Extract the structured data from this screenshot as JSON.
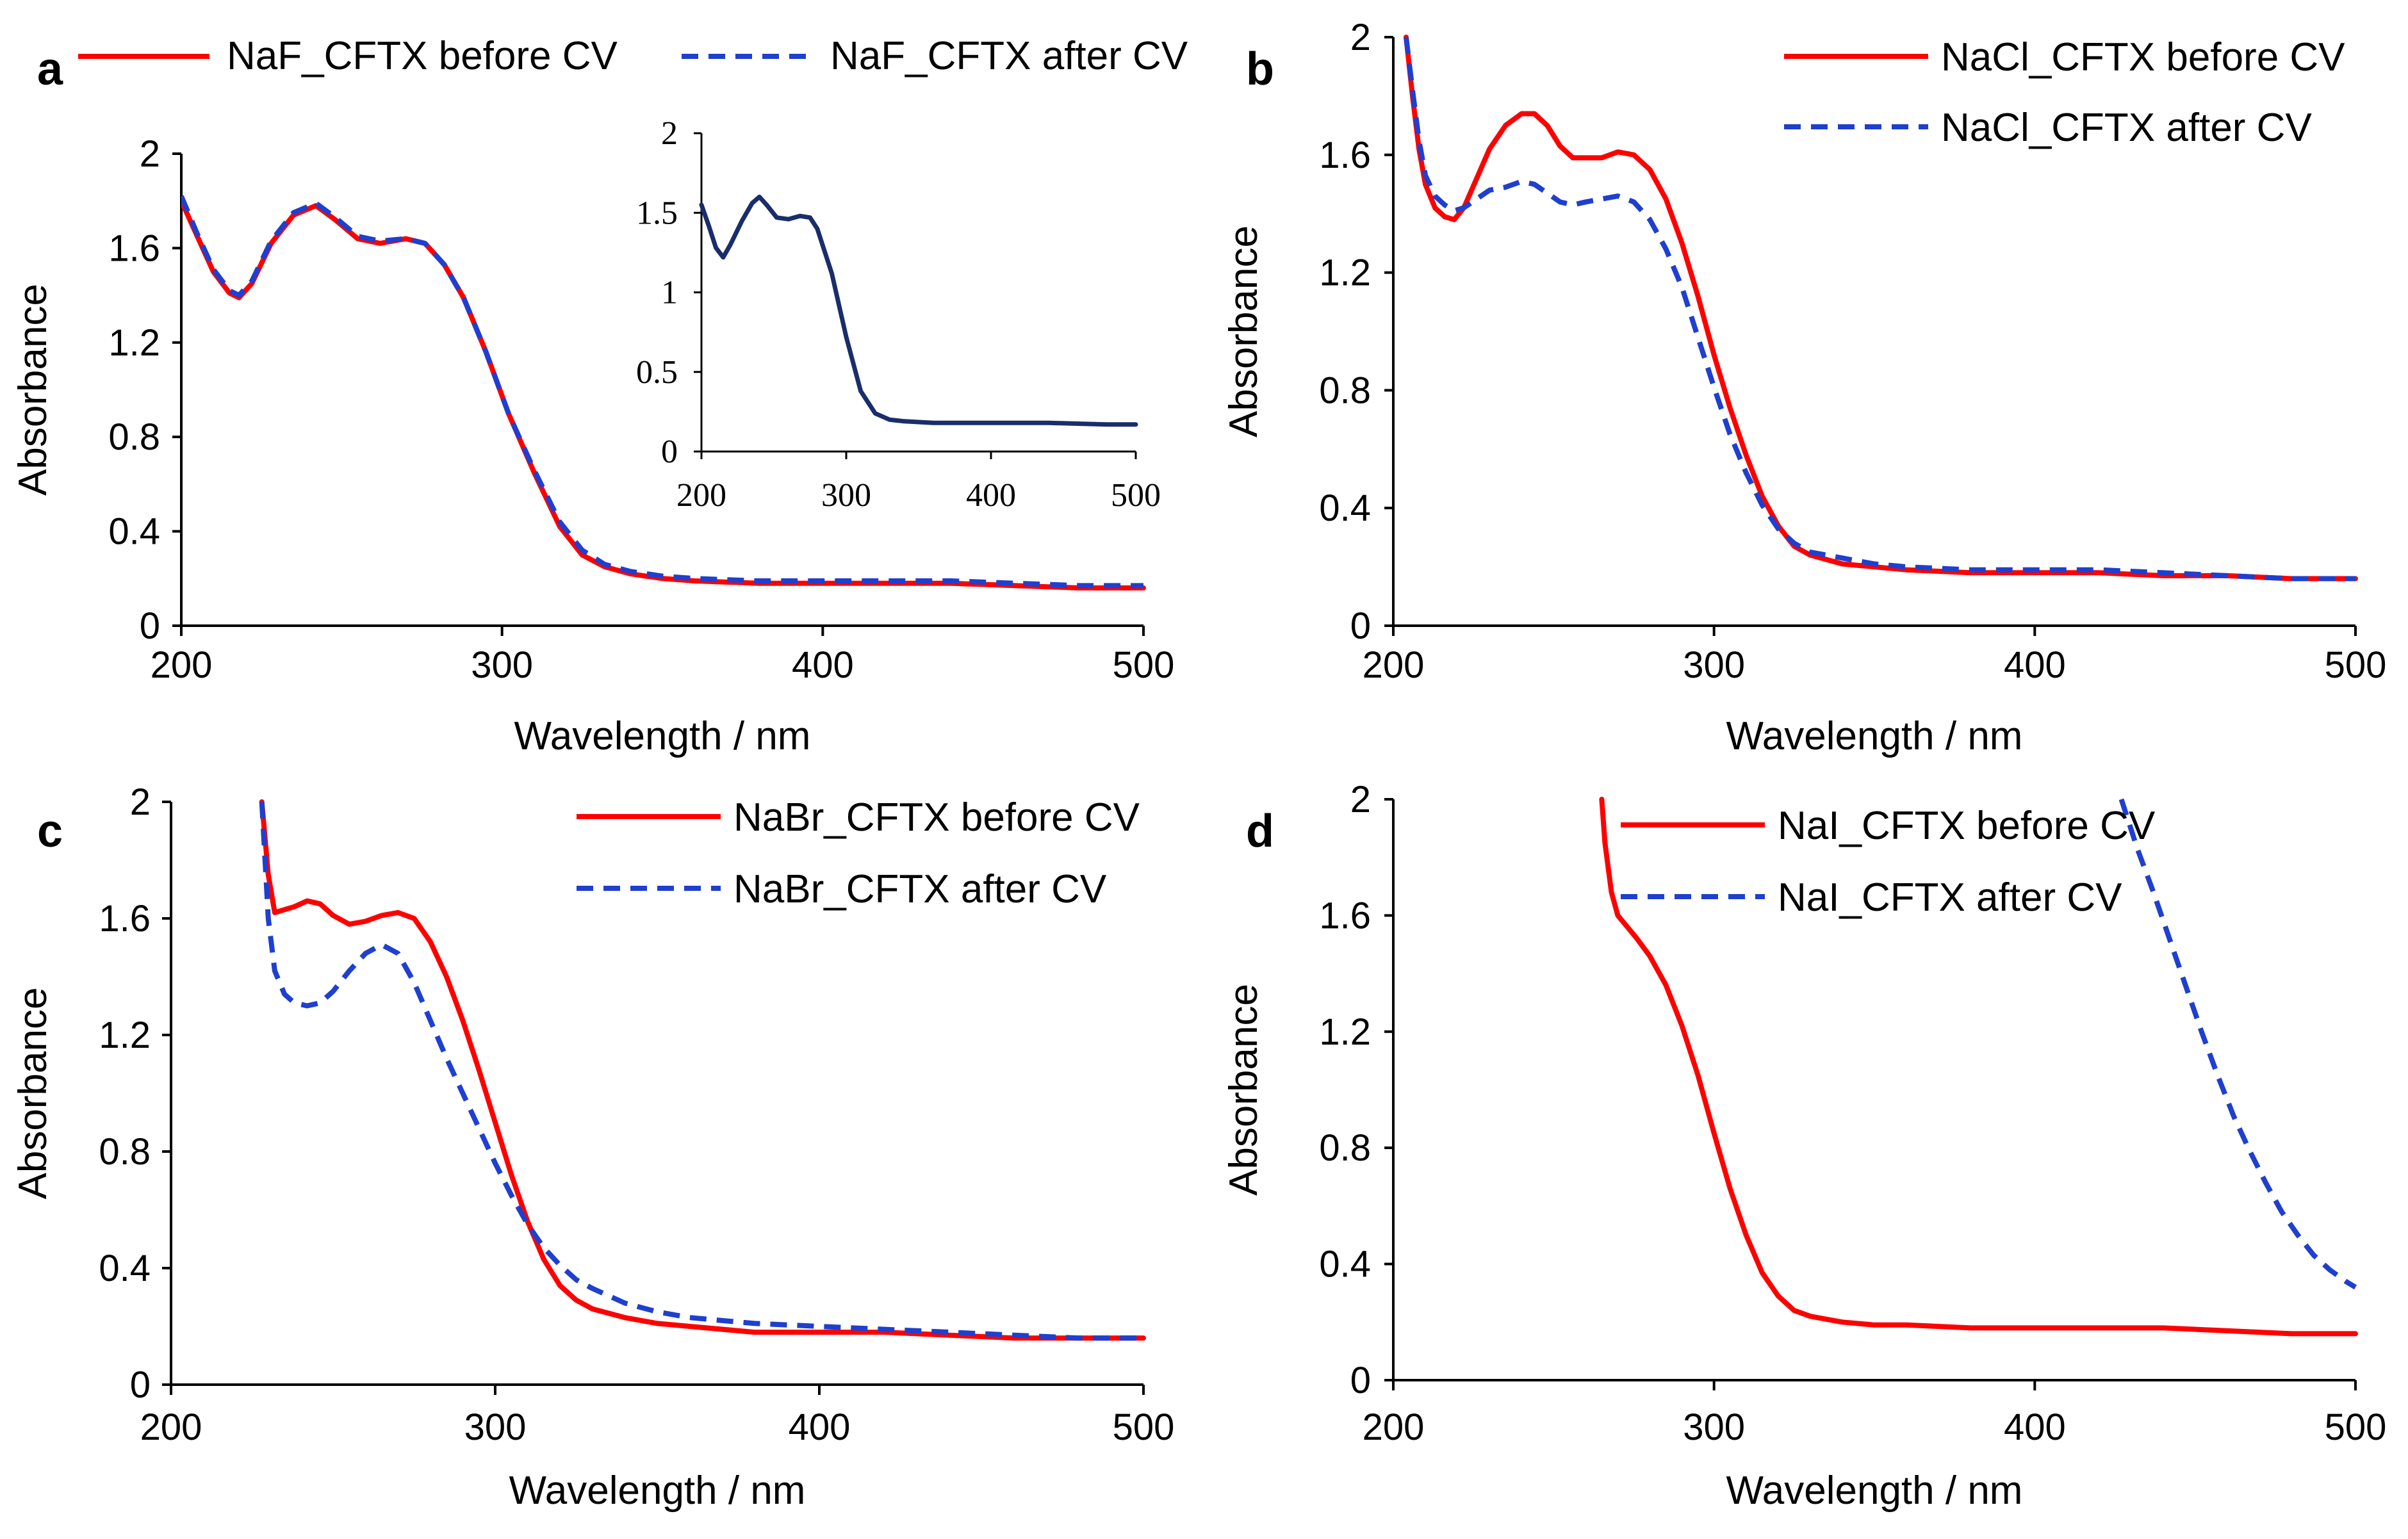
{
  "chart_data": [
    {
      "panel": "a",
      "type": "line",
      "xlabel": "Wavelength / nm",
      "ylabel": "Absorbance",
      "xlim": [
        200,
        500
      ],
      "ylim": [
        0,
        2
      ],
      "xticks": [
        "200",
        "300",
        "400",
        "500"
      ],
      "yticks": [
        "0",
        "0.4",
        "0.8",
        "1.2",
        "1.6",
        "2"
      ],
      "legend_position": "top",
      "series": [
        {
          "name": "NaF_CFTX before CV",
          "color": "#ff0000",
          "style": "solid",
          "x": [
            200,
            205,
            210,
            215,
            218,
            222,
            228,
            235,
            242,
            248,
            255,
            262,
            270,
            276,
            282,
            288,
            295,
            302,
            310,
            318,
            325,
            332,
            340,
            350,
            360,
            380,
            400,
            420,
            440,
            460,
            480,
            490,
            500
          ],
          "y": [
            1.8,
            1.65,
            1.5,
            1.41,
            1.39,
            1.45,
            1.62,
            1.74,
            1.78,
            1.72,
            1.64,
            1.62,
            1.64,
            1.62,
            1.53,
            1.39,
            1.16,
            0.9,
            0.65,
            0.42,
            0.3,
            0.25,
            0.22,
            0.2,
            0.19,
            0.18,
            0.18,
            0.18,
            0.18,
            0.17,
            0.16,
            0.16,
            0.16
          ]
        },
        {
          "name": "NaF_CFTX after CV",
          "color": "#1f3fcf",
          "style": "dashed",
          "x": [
            200,
            205,
            210,
            215,
            218,
            222,
            228,
            235,
            242,
            248,
            255,
            262,
            270,
            276,
            282,
            288,
            295,
            302,
            310,
            318,
            325,
            332,
            340,
            350,
            360,
            380,
            400,
            420,
            440,
            460,
            480,
            490,
            500
          ],
          "y": [
            1.82,
            1.66,
            1.51,
            1.42,
            1.4,
            1.46,
            1.63,
            1.75,
            1.79,
            1.73,
            1.65,
            1.63,
            1.64,
            1.62,
            1.53,
            1.39,
            1.16,
            0.9,
            0.66,
            0.44,
            0.32,
            0.26,
            0.23,
            0.21,
            0.2,
            0.19,
            0.19,
            0.19,
            0.19,
            0.18,
            0.17,
            0.17,
            0.17
          ]
        }
      ],
      "inset": {
        "type": "line",
        "xlim": [
          200,
          500
        ],
        "ylim": [
          0,
          2
        ],
        "xticks": [
          "200",
          "300",
          "400",
          "500"
        ],
        "yticks": [
          "0",
          "0.5",
          "1",
          "1.5",
          "2"
        ],
        "series": [
          {
            "color": "#1a2d6b",
            "x": [
              200,
              205,
              210,
              215,
              220,
              228,
              235,
              240,
              245,
              252,
              260,
              268,
              275,
              280,
              290,
              300,
              310,
              320,
              330,
              340,
              360,
              380,
              400,
              440,
              480,
              500
            ],
            "y": [
              1.55,
              1.42,
              1.28,
              1.22,
              1.3,
              1.45,
              1.56,
              1.6,
              1.55,
              1.47,
              1.46,
              1.48,
              1.47,
              1.4,
              1.12,
              0.72,
              0.38,
              0.24,
              0.2,
              0.19,
              0.18,
              0.18,
              0.18,
              0.18,
              0.17,
              0.17
            ]
          }
        ]
      }
    },
    {
      "panel": "b",
      "type": "line",
      "xlabel": "Wavelength / nm",
      "ylabel": "Absorbance",
      "xlim": [
        200,
        500
      ],
      "ylim": [
        0,
        2
      ],
      "xticks": [
        "200",
        "300",
        "400",
        "500"
      ],
      "yticks": [
        "0",
        "0.4",
        "0.8",
        "1.2",
        "1.6",
        "2"
      ],
      "legend_position": "top-right",
      "series": [
        {
          "name": "NaCl_CFTX before CV",
          "color": "#ff0000",
          "style": "solid",
          "x": [
            204,
            206,
            208,
            210,
            213,
            216,
            219,
            222,
            226,
            230,
            235,
            240,
            244,
            248,
            252,
            256,
            260,
            265,
            270,
            275,
            280,
            285,
            290,
            295,
            300,
            305,
            310,
            315,
            320,
            325,
            330,
            340,
            350,
            360,
            380,
            400,
            420,
            440,
            460,
            480,
            500
          ],
          "y": [
            2.0,
            1.8,
            1.62,
            1.5,
            1.42,
            1.39,
            1.38,
            1.42,
            1.52,
            1.62,
            1.7,
            1.74,
            1.74,
            1.7,
            1.63,
            1.59,
            1.59,
            1.59,
            1.61,
            1.6,
            1.55,
            1.45,
            1.3,
            1.12,
            0.92,
            0.74,
            0.58,
            0.44,
            0.34,
            0.27,
            0.24,
            0.21,
            0.2,
            0.19,
            0.18,
            0.18,
            0.18,
            0.17,
            0.17,
            0.16,
            0.16
          ]
        },
        {
          "name": "NaCl_CFTX after CV",
          "color": "#1f3fcf",
          "style": "dashed",
          "x": [
            204,
            206,
            208,
            210,
            213,
            216,
            219,
            222,
            226,
            230,
            235,
            240,
            244,
            248,
            252,
            256,
            260,
            265,
            270,
            275,
            280,
            285,
            290,
            295,
            300,
            305,
            310,
            315,
            320,
            325,
            330,
            340,
            350,
            360,
            380,
            400,
            420,
            440,
            460,
            480,
            500
          ],
          "y": [
            2.0,
            1.82,
            1.65,
            1.53,
            1.46,
            1.43,
            1.41,
            1.42,
            1.45,
            1.48,
            1.49,
            1.51,
            1.5,
            1.47,
            1.44,
            1.43,
            1.44,
            1.45,
            1.46,
            1.44,
            1.38,
            1.28,
            1.15,
            0.98,
            0.81,
            0.65,
            0.52,
            0.41,
            0.33,
            0.28,
            0.25,
            0.23,
            0.21,
            0.2,
            0.19,
            0.19,
            0.19,
            0.18,
            0.17,
            0.16,
            0.16
          ]
        }
      ]
    },
    {
      "panel": "c",
      "type": "line",
      "xlabel": "Wavelength / nm",
      "ylabel": "Absorbance",
      "xlim": [
        200,
        500
      ],
      "ylim": [
        0,
        2
      ],
      "xticks": [
        "200",
        "300",
        "400",
        "500"
      ],
      "yticks": [
        "0",
        "0.4",
        "0.8",
        "1.2",
        "1.6",
        "2"
      ],
      "legend_position": "top-right",
      "series": [
        {
          "name": "NaBr_CFTX before CV",
          "color": "#ff0000",
          "style": "solid",
          "x": [
            228,
            230,
            232,
            235,
            238,
            242,
            246,
            250,
            255,
            260,
            265,
            270,
            275,
            280,
            285,
            290,
            295,
            300,
            305,
            310,
            315,
            320,
            325,
            330,
            340,
            350,
            360,
            380,
            400,
            420,
            440,
            460,
            480,
            500
          ],
          "y": [
            2.0,
            1.75,
            1.62,
            1.63,
            1.64,
            1.66,
            1.65,
            1.61,
            1.58,
            1.59,
            1.61,
            1.62,
            1.6,
            1.52,
            1.4,
            1.25,
            1.08,
            0.9,
            0.72,
            0.56,
            0.43,
            0.34,
            0.29,
            0.26,
            0.23,
            0.21,
            0.2,
            0.18,
            0.18,
            0.18,
            0.17,
            0.16,
            0.16,
            0.16
          ]
        },
        {
          "name": "NaBr_CFTX after CV",
          "color": "#1f3fcf",
          "style": "dashed",
          "x": [
            228,
            230,
            232,
            235,
            238,
            242,
            246,
            250,
            255,
            260,
            265,
            270,
            275,
            280,
            285,
            290,
            295,
            300,
            305,
            310,
            315,
            320,
            325,
            330,
            340,
            350,
            360,
            380,
            400,
            420,
            440,
            460,
            480,
            500
          ],
          "y": [
            2.0,
            1.6,
            1.42,
            1.34,
            1.31,
            1.3,
            1.31,
            1.35,
            1.42,
            1.48,
            1.51,
            1.48,
            1.38,
            1.25,
            1.12,
            1.0,
            0.88,
            0.76,
            0.65,
            0.55,
            0.47,
            0.41,
            0.36,
            0.33,
            0.28,
            0.25,
            0.23,
            0.21,
            0.2,
            0.19,
            0.18,
            0.17,
            0.16,
            0.16
          ]
        }
      ]
    },
    {
      "panel": "d",
      "type": "line",
      "xlabel": "Wavelength / nm",
      "ylabel": "Absorbance",
      "xlim": [
        200,
        500
      ],
      "ylim": [
        0,
        2
      ],
      "xticks": [
        "200",
        "300",
        "400",
        "500"
      ],
      "yticks": [
        "0",
        "0.4",
        "0.8",
        "1.2",
        "1.6",
        "2"
      ],
      "legend_position": "top",
      "series": [
        {
          "name": "NaI_CFTX before CV",
          "color": "#ff0000",
          "style": "solid",
          "x": [
            265,
            266,
            268,
            270,
            273,
            276,
            280,
            285,
            290,
            295,
            300,
            305,
            310,
            315,
            320,
            325,
            330,
            335,
            340,
            350,
            360,
            380,
            400,
            420,
            440,
            460,
            480,
            500
          ],
          "y": [
            2.0,
            1.85,
            1.68,
            1.6,
            1.56,
            1.52,
            1.46,
            1.36,
            1.22,
            1.05,
            0.85,
            0.66,
            0.5,
            0.37,
            0.29,
            0.24,
            0.22,
            0.21,
            0.2,
            0.19,
            0.19,
            0.18,
            0.18,
            0.18,
            0.18,
            0.17,
            0.16,
            0.16
          ]
        },
        {
          "name": "NaI_CFTX after CV",
          "color": "#1f3fcf",
          "style": "dashed",
          "x": [
            427,
            432,
            437,
            442,
            447,
            452,
            457,
            462,
            467,
            472,
            477,
            482,
            487,
            492,
            497,
            500
          ],
          "y": [
            2.0,
            1.83,
            1.68,
            1.52,
            1.36,
            1.2,
            1.05,
            0.91,
            0.79,
            0.68,
            0.58,
            0.5,
            0.43,
            0.38,
            0.34,
            0.32
          ]
        }
      ]
    }
  ]
}
